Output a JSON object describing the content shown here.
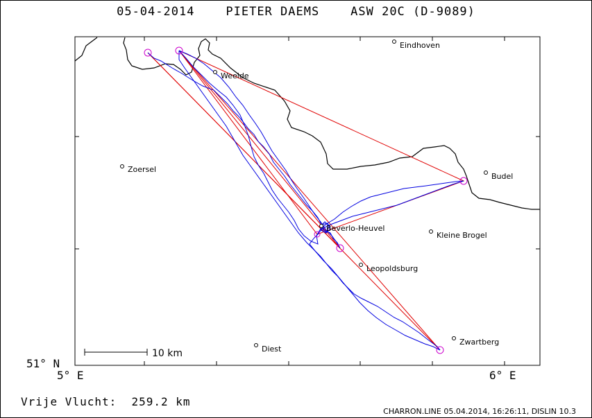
{
  "title": "05-04-2014    PIETER DAEMS    ASW 20C (D-9089)",
  "axes": {
    "lat_label": "51° N",
    "lon_left_label": "5° E",
    "lon_right_label": "6° E"
  },
  "scale_bar": {
    "label": "10 km"
  },
  "towns": [
    {
      "name": "Eindhoven",
      "lon": 5.48,
      "lat": 51.44
    },
    {
      "name": "Weelde",
      "lon": 5.0,
      "lat": 51.41
    },
    {
      "name": "Zoersel",
      "lon": 4.62,
      "lat": 51.26
    },
    {
      "name": "Budel",
      "lon": 5.58,
      "lat": 51.27
    },
    {
      "name": "Beverlo-Heuvel",
      "lon": 5.22,
      "lat": 51.11
    },
    {
      "name": "Kleine Brogel",
      "lon": 5.45,
      "lat": 51.16
    },
    {
      "name": "Leopoldsburg",
      "lon": 5.26,
      "lat": 51.12
    },
    {
      "name": "Diest",
      "lon": 5.05,
      "lat": 50.98
    },
    {
      "name": "Zwartberg",
      "lon": 5.53,
      "lat": 51.0
    }
  ],
  "turnpoints": [
    "start",
    "tp1",
    "tp2",
    "tp3",
    "tp4",
    "tp5"
  ],
  "colors": {
    "task": "#e00000",
    "track": "#0000e0",
    "turnpoint": "#cc00cc",
    "border": "#000000"
  },
  "distance_label": "Vrije Vlucht:  259.2 km",
  "footer": "CHARRON.LINE 05.04.2014, 16:26:11, DISLIN 10.3"
}
